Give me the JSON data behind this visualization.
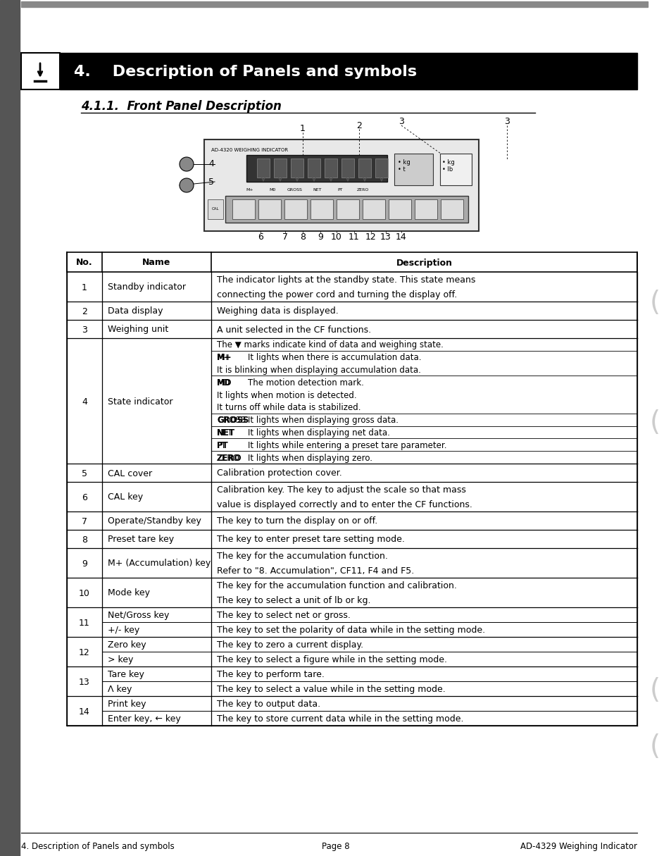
{
  "title": "4.    Description of Panels and symbols",
  "subtitle": "4.1.1.  Front Panel Description",
  "footer_left": "4. Description of Panels and symbols",
  "footer_center": "Page 8",
  "footer_right": "AD-4329 Weighing Indicator",
  "table_headers": [
    "No.",
    "Name",
    "Description"
  ],
  "table_rows": [
    {
      "no": "1",
      "name": "Standby indicator",
      "desc": [
        "The indicator lights at the standby state. This state means",
        "connecting the power cord and turning the display off."
      ],
      "rowspan": 2
    },
    {
      "no": "2",
      "name": "Data display",
      "desc": [
        "Weighing data is displayed."
      ],
      "rowspan": 1
    },
    {
      "no": "3",
      "name": "Weighing unit",
      "desc": [
        "A unit selected in the CF functions."
      ],
      "rowspan": 1
    },
    {
      "no": "4",
      "name": "State indicator",
      "desc_complex": [
        {
          "text": "The ▼ marks indicate kind of data and weighing state.",
          "indent": 0,
          "bold_prefix": ""
        },
        {
          "text": "It lights when there is accumulation data.",
          "indent": 1,
          "bold_prefix": "M+"
        },
        {
          "text": "It is blinking when displaying accumulation data.",
          "indent": 2,
          "bold_prefix": ""
        },
        {
          "text": "The motion detection mark.",
          "indent": 1,
          "bold_prefix": "MD"
        },
        {
          "text": "It lights when motion is detected.",
          "indent": 2,
          "bold_prefix": ""
        },
        {
          "text": "It turns off while data is stabilized.",
          "indent": 2,
          "bold_prefix": ""
        },
        {
          "text": "It lights when displaying gross data.",
          "indent": 1,
          "bold_prefix": "GROSS"
        },
        {
          "text": "It lights when displaying net data.",
          "indent": 1,
          "bold_prefix": "NET"
        },
        {
          "text": "It lights while entering a preset tare parameter.",
          "indent": 1,
          "bold_prefix": "PT"
        },
        {
          "text": "It lights when displaying zero.",
          "indent": 1,
          "bold_prefix": "ZERO"
        }
      ],
      "rowspan": 10
    },
    {
      "no": "5",
      "name": "CAL cover",
      "desc": [
        "Calibration protection cover."
      ],
      "rowspan": 1
    },
    {
      "no": "6",
      "name": "CAL key",
      "desc": [
        "Calibration key. The key to adjust the scale so that mass",
        "value is displayed correctly and to enter the CF functions."
      ],
      "rowspan": 2
    },
    {
      "no": "7",
      "name": "Operate/Standby key",
      "desc": [
        "The key to turn the display on or off."
      ],
      "rowspan": 1
    },
    {
      "no": "8",
      "name": "Preset tare key",
      "desc": [
        "The key to enter preset tare setting mode."
      ],
      "rowspan": 1
    },
    {
      "no": "9",
      "name": "M+ (Accumulation) key",
      "desc": [
        "The key for the accumulation function.",
        "Refer to \"8. Accumulation\", CF11, F4 and F5."
      ],
      "rowspan": 2
    },
    {
      "no": "10",
      "name": "Mode key",
      "desc": [
        "The key for the accumulation function and calibration.",
        "The key to select a unit of lb or kg."
      ],
      "rowspan": 2
    },
    {
      "no": "11",
      "name_lines": [
        "Net/Gross key",
        "+/- key"
      ],
      "desc": [
        "The key to select net or gross.",
        "The key to set the polarity of data while in the setting mode."
      ],
      "rowspan": 2
    },
    {
      "no": "12",
      "name_lines": [
        "Zero key",
        "> key"
      ],
      "desc": [
        "The key to zero a current display.",
        "The key to select a figure while in the setting mode."
      ],
      "rowspan": 2
    },
    {
      "no": "13",
      "name_lines": [
        "Tare key",
        "Λ key"
      ],
      "desc": [
        "The key to perform tare.",
        "The key to select a value while in the setting mode."
      ],
      "rowspan": 2
    },
    {
      "no": "14",
      "name_lines": [
        "Print key",
        "Enter key, ← key"
      ],
      "desc": [
        "The key to output data.",
        "The key to store current data while in the setting mode."
      ],
      "rowspan": 2
    }
  ],
  "bg_color": "#ffffff",
  "header_bg": "#000000",
  "header_text_color": "#ffffff",
  "table_bg": "#ffffff",
  "border_color": "#000000",
  "text_color": "#000000"
}
